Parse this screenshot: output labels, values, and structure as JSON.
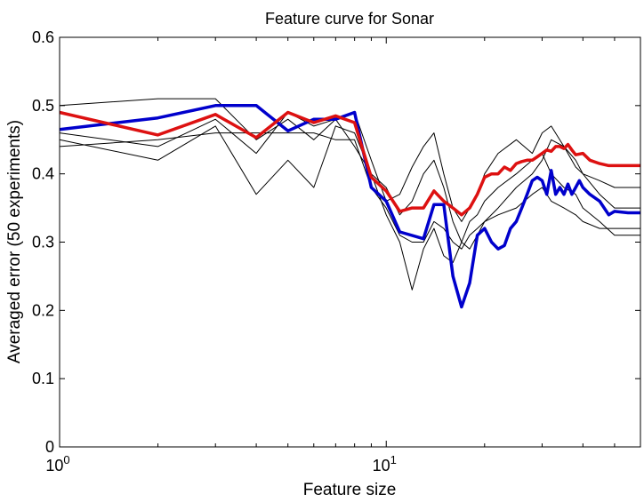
{
  "chart_data": {
    "type": "line",
    "title": "Feature curve for Sonar",
    "xlabel": "Feature size",
    "ylabel": "Averaged error (50 experiments)",
    "xscale": "log",
    "xlim": [
      1,
      60
    ],
    "ylim": [
      0,
      0.6
    ],
    "yticks": [
      0,
      0.1,
      0.2,
      0.3,
      0.4,
      0.5,
      0.6
    ],
    "ytick_labels": [
      "0",
      "0.1",
      "0.2",
      "0.3",
      "0.4",
      "0.5",
      "0.6"
    ],
    "xticks": [
      {
        "value": 1,
        "base": "10",
        "exp": "0"
      },
      {
        "value": 10,
        "base": "10",
        "exp": "1"
      }
    ],
    "grid": false,
    "legend": "none",
    "series": [
      {
        "color": "#000000",
        "width": 1,
        "x": [
          1,
          2,
          3,
          4,
          5,
          6,
          7,
          8,
          9,
          10,
          11,
          12,
          13,
          14,
          15,
          16,
          17,
          18,
          19,
          20,
          22,
          25,
          28,
          30,
          32,
          35,
          38,
          40,
          45,
          50,
          60
        ],
        "y": [
          0.45,
          0.42,
          0.47,
          0.37,
          0.42,
          0.38,
          0.47,
          0.46,
          0.4,
          0.34,
          0.3,
          0.23,
          0.29,
          0.32,
          0.28,
          0.27,
          0.3,
          0.33,
          0.34,
          0.36,
          0.38,
          0.4,
          0.42,
          0.43,
          0.4,
          0.38,
          0.37,
          0.35,
          0.33,
          0.31,
          0.31
        ]
      },
      {
        "color": "#000000",
        "width": 1,
        "x": [
          1,
          2,
          3,
          4,
          5,
          6,
          7,
          8,
          9,
          10,
          11,
          12,
          13,
          14,
          15,
          16,
          17,
          18,
          19,
          20,
          22,
          25,
          28,
          30,
          32,
          35,
          38,
          40,
          45,
          50,
          60
        ],
        "y": [
          0.5,
          0.51,
          0.51,
          0.45,
          0.48,
          0.45,
          0.48,
          0.44,
          0.4,
          0.38,
          0.34,
          0.36,
          0.4,
          0.42,
          0.38,
          0.33,
          0.3,
          0.29,
          0.31,
          0.33,
          0.35,
          0.38,
          0.4,
          0.42,
          0.45,
          0.44,
          0.42,
          0.4,
          0.39,
          0.38,
          0.38
        ]
      },
      {
        "color": "#000000",
        "width": 1,
        "x": [
          1,
          2,
          3,
          4,
          5,
          6,
          7,
          8,
          9,
          10,
          11,
          12,
          13,
          14,
          15,
          16,
          17,
          18,
          19,
          20,
          22,
          25,
          28,
          30,
          32,
          35,
          38,
          40,
          45,
          50,
          60
        ],
        "y": [
          0.46,
          0.44,
          0.48,
          0.43,
          0.49,
          0.47,
          0.48,
          0.49,
          0.42,
          0.36,
          0.37,
          0.41,
          0.44,
          0.46,
          0.4,
          0.35,
          0.33,
          0.35,
          0.37,
          0.4,
          0.43,
          0.45,
          0.43,
          0.46,
          0.47,
          0.44,
          0.41,
          0.4,
          0.37,
          0.35,
          0.35
        ]
      },
      {
        "color": "#000000",
        "width": 1,
        "x": [
          1,
          2,
          3,
          4,
          5,
          6,
          7,
          8,
          9,
          10,
          11,
          12,
          13,
          14,
          15,
          16,
          17,
          18,
          19,
          20,
          22,
          25,
          28,
          30,
          32,
          35,
          38,
          40,
          45,
          50,
          60
        ],
        "y": [
          0.44,
          0.45,
          0.46,
          0.46,
          0.46,
          0.46,
          0.45,
          0.45,
          0.38,
          0.35,
          0.31,
          0.3,
          0.3,
          0.33,
          0.32,
          0.3,
          0.29,
          0.31,
          0.32,
          0.33,
          0.34,
          0.35,
          0.37,
          0.38,
          0.36,
          0.35,
          0.34,
          0.33,
          0.32,
          0.32,
          0.32
        ]
      },
      {
        "color": "#0000cc",
        "width": 3.5,
        "x": [
          1,
          2,
          3,
          4,
          5,
          6,
          7,
          8,
          9,
          10,
          11,
          13,
          14,
          15,
          16,
          17,
          18,
          19,
          20,
          21,
          22,
          23,
          24,
          25,
          26,
          27,
          28,
          29,
          30,
          31,
          32,
          33,
          34,
          35,
          36,
          37,
          38,
          39,
          40,
          42,
          45,
          48,
          50,
          55,
          60
        ],
        "y": [
          0.465,
          0.482,
          0.5,
          0.5,
          0.463,
          0.48,
          0.48,
          0.49,
          0.38,
          0.36,
          0.315,
          0.305,
          0.355,
          0.355,
          0.25,
          0.205,
          0.24,
          0.31,
          0.32,
          0.3,
          0.29,
          0.295,
          0.32,
          0.33,
          0.35,
          0.37,
          0.39,
          0.395,
          0.39,
          0.37,
          0.405,
          0.37,
          0.38,
          0.37,
          0.385,
          0.37,
          0.38,
          0.39,
          0.38,
          0.37,
          0.36,
          0.34,
          0.345,
          0.343,
          0.343
        ]
      },
      {
        "color": "#dd1111",
        "width": 3.5,
        "x": [
          1,
          2,
          3,
          4,
          5,
          6,
          7,
          8,
          9,
          10,
          11,
          12,
          13,
          14,
          15,
          16,
          17,
          18,
          19,
          20,
          21,
          22,
          23,
          24,
          25,
          26,
          27,
          28,
          29,
          30,
          31,
          32,
          33,
          34,
          35,
          36,
          37,
          38,
          40,
          42,
          45,
          48,
          50,
          55,
          60
        ],
        "y": [
          0.49,
          0.457,
          0.487,
          0.453,
          0.49,
          0.475,
          0.485,
          0.475,
          0.395,
          0.375,
          0.345,
          0.35,
          0.35,
          0.375,
          0.36,
          0.35,
          0.34,
          0.35,
          0.37,
          0.395,
          0.4,
          0.4,
          0.41,
          0.405,
          0.415,
          0.418,
          0.42,
          0.42,
          0.425,
          0.43,
          0.435,
          0.433,
          0.44,
          0.44,
          0.437,
          0.443,
          0.435,
          0.428,
          0.43,
          0.42,
          0.415,
          0.412,
          0.412,
          0.412,
          0.412
        ]
      }
    ]
  }
}
